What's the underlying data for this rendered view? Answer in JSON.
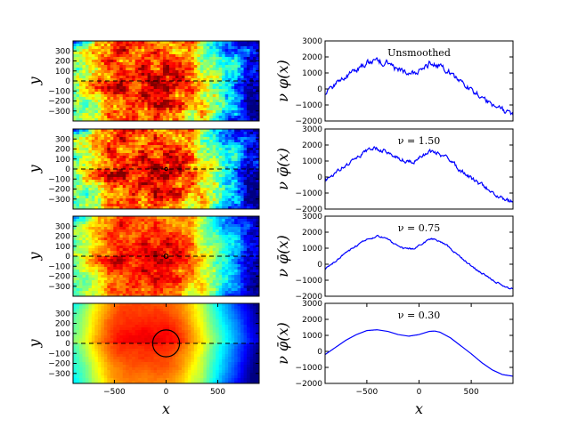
{
  "figure": {
    "colormap": "jet",
    "line_color": "#0000ff"
  },
  "chart_data": [
    {
      "type": "heatmap",
      "panel": "left-1",
      "xlim": [
        -900,
        900
      ],
      "ylim": [
        -400,
        400
      ],
      "xticks": [],
      "yticks": [
        300,
        200,
        100,
        0,
        -100,
        -200,
        -300
      ],
      "ylabel": "y",
      "dashed_line_y": 0,
      "x_high_region": [
        -700,
        300
      ],
      "noise": "fine",
      "circle": null
    },
    {
      "type": "heatmap",
      "panel": "left-2",
      "xlim": [
        -900,
        900
      ],
      "ylim": [
        -400,
        400
      ],
      "xticks": [],
      "yticks": [
        300,
        200,
        100,
        0,
        -100,
        -200,
        -300
      ],
      "ylabel": "y",
      "dashed_line_y": 0,
      "x_high_region": [
        -700,
        300
      ],
      "noise": "fine",
      "circle": {
        "cx": 0,
        "cy": 0,
        "r": 5
      }
    },
    {
      "type": "heatmap",
      "panel": "left-3",
      "xlim": [
        -900,
        900
      ],
      "ylim": [
        -400,
        400
      ],
      "xticks": [],
      "yticks": [
        300,
        200,
        100,
        0,
        -100,
        -200,
        -300
      ],
      "ylabel": "y",
      "dashed_line_y": 0,
      "x_high_region": [
        -700,
        300
      ],
      "noise": "medium",
      "circle": {
        "cx": 0,
        "cy": 0,
        "r": 20
      }
    },
    {
      "type": "heatmap",
      "panel": "left-4",
      "xlim": [
        -900,
        900
      ],
      "ylim": [
        -400,
        400
      ],
      "xticks": [
        -500,
        0,
        500
      ],
      "yticks": [
        300,
        200,
        100,
        0,
        -100,
        -200,
        -300
      ],
      "ylabel": "y",
      "xlabel": "x",
      "dashed_line_y": 0,
      "x_high_region": [
        -700,
        300
      ],
      "noise": "smooth",
      "circle": {
        "cx": 0,
        "cy": 0,
        "r": 130
      }
    },
    {
      "type": "line",
      "panel": "right-1",
      "xlim": [
        -900,
        900
      ],
      "ylim": [
        -2000,
        3000
      ],
      "yticks": [
        3000,
        2000,
        1000,
        0,
        -1000,
        -2000
      ],
      "xticks": [],
      "ylabel": "ν φ(x)",
      "annotation": "Unsmoothed",
      "noise_amp": 150,
      "x": [
        -900,
        -800,
        -700,
        -600,
        -500,
        -400,
        -300,
        -250,
        -150,
        -50,
        0,
        100,
        150,
        250,
        350,
        450,
        550,
        650,
        750,
        850,
        900
      ],
      "y": [
        -200,
        300,
        800,
        1200,
        1650,
        1800,
        1600,
        1300,
        1050,
        1000,
        1200,
        1600,
        1550,
        1300,
        700,
        150,
        -300,
        -700,
        -1200,
        -1500,
        -1550
      ]
    },
    {
      "type": "line",
      "panel": "right-2",
      "xlim": [
        -900,
        900
      ],
      "ylim": [
        -2000,
        3000
      ],
      "yticks": [
        3000,
        2000,
        1000,
        0,
        -1000,
        -2000
      ],
      "xticks": [],
      "ylabel": "ν φ̄(x)",
      "annotation": "ν = 1.50",
      "noise_amp": 110,
      "x": [
        -900,
        -800,
        -700,
        -600,
        -500,
        -400,
        -300,
        -250,
        -150,
        -50,
        0,
        100,
        150,
        250,
        350,
        450,
        550,
        650,
        750,
        850,
        900
      ],
      "y": [
        -200,
        300,
        800,
        1200,
        1650,
        1800,
        1600,
        1300,
        1050,
        1000,
        1200,
        1600,
        1550,
        1300,
        700,
        150,
        -300,
        -700,
        -1200,
        -1500,
        -1550
      ]
    },
    {
      "type": "line",
      "panel": "right-3",
      "xlim": [
        -900,
        900
      ],
      "ylim": [
        -2000,
        3000
      ],
      "yticks": [
        3000,
        2000,
        1000,
        0,
        -1000,
        -2000
      ],
      "xticks": [],
      "ylabel": "ν φ̄(x)",
      "annotation": "ν = 0.75",
      "noise_amp": 45,
      "x": [
        -900,
        -800,
        -700,
        -600,
        -500,
        -400,
        -300,
        -250,
        -150,
        -50,
        0,
        100,
        150,
        250,
        350,
        450,
        550,
        650,
        750,
        850,
        900
      ],
      "y": [
        -300,
        200,
        700,
        1150,
        1550,
        1750,
        1600,
        1300,
        1000,
        950,
        1150,
        1550,
        1550,
        1250,
        700,
        150,
        -350,
        -750,
        -1150,
        -1500,
        -1550
      ]
    },
    {
      "type": "line",
      "panel": "right-4",
      "xlim": [
        -900,
        900
      ],
      "ylim": [
        -2000,
        3000
      ],
      "yticks": [
        3000,
        2000,
        1000,
        0,
        -1000,
        -2000
      ],
      "xticks": [
        -500,
        0,
        500
      ],
      "ylabel": "ν φ̄(x)",
      "xlabel": "x",
      "annotation": "ν = 0.30",
      "noise_amp": 0,
      "x": [
        -900,
        -800,
        -700,
        -600,
        -500,
        -400,
        -300,
        -200,
        -100,
        0,
        100,
        150,
        200,
        300,
        400,
        500,
        600,
        700,
        800,
        900
      ],
      "y": [
        -200,
        250,
        700,
        1050,
        1300,
        1350,
        1250,
        1050,
        950,
        1050,
        1250,
        1270,
        1200,
        850,
        350,
        -150,
        -700,
        -1150,
        -1450,
        -1550
      ]
    }
  ]
}
